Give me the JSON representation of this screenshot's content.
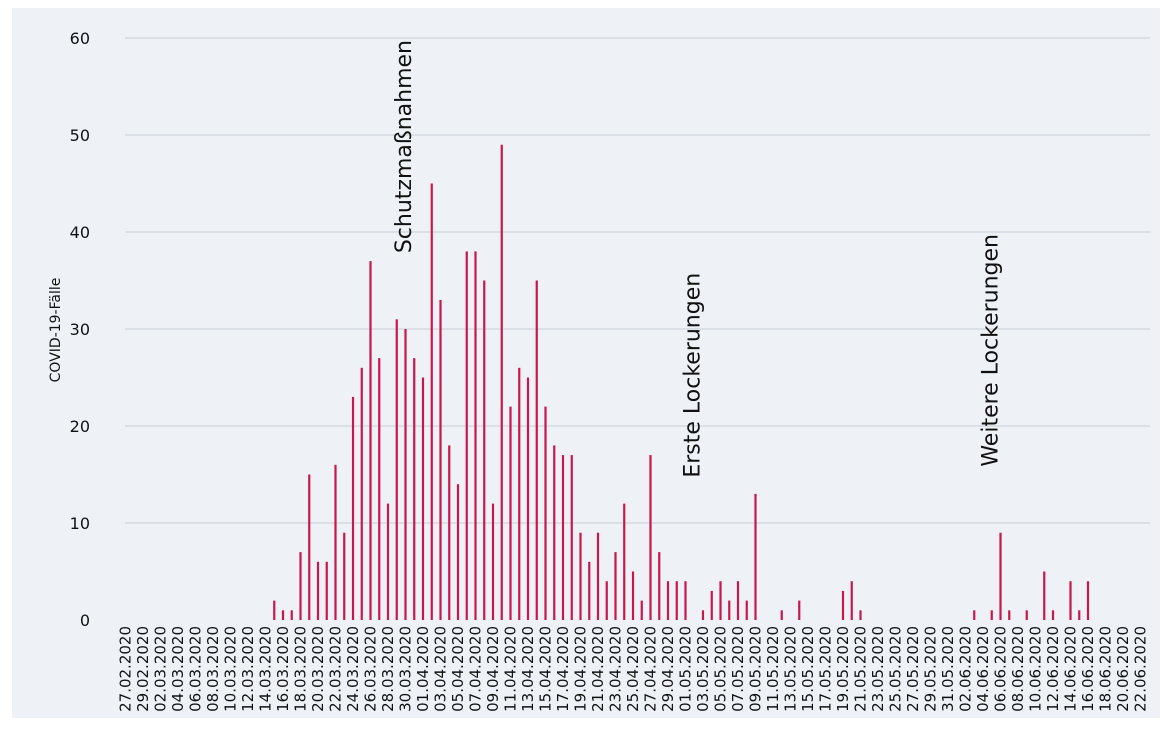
{
  "chart_data": {
    "type": "bar",
    "title": "",
    "xlabel": "",
    "ylabel": "COVID-19-Fälle",
    "ylim": [
      0,
      60
    ],
    "yticks": [
      0,
      10,
      20,
      30,
      40,
      50,
      60
    ],
    "grid": "horizontal",
    "colors": {
      "bar": "#c8174b",
      "grid": "#c7cfd7",
      "background": "#eef2f6"
    },
    "start_date": "27.02.2020",
    "categories": [
      "27.02.2020",
      "28.02.2020",
      "29.02.2020",
      "01.03.2020",
      "02.03.2020",
      "03.03.2020",
      "04.03.2020",
      "05.03.2020",
      "06.03.2020",
      "07.03.2020",
      "08.03.2020",
      "09.03.2020",
      "10.03.2020",
      "11.03.2020",
      "12.03.2020",
      "13.03.2020",
      "14.03.2020",
      "15.03.2020",
      "16.03.2020",
      "17.03.2020",
      "18.03.2020",
      "19.03.2020",
      "20.03.2020",
      "21.03.2020",
      "22.03.2020",
      "23.03.2020",
      "24.03.2020",
      "25.03.2020",
      "26.03.2020",
      "27.03.2020",
      "28.03.2020",
      "29.03.2020",
      "30.03.2020",
      "31.03.2020",
      "01.04.2020",
      "02.04.2020",
      "03.04.2020",
      "04.04.2020",
      "05.04.2020",
      "06.04.2020",
      "07.04.2020",
      "08.04.2020",
      "09.04.2020",
      "10.04.2020",
      "11.04.2020",
      "12.04.2020",
      "13.04.2020",
      "14.04.2020",
      "15.04.2020",
      "16.04.2020",
      "17.04.2020",
      "18.04.2020",
      "19.04.2020",
      "20.04.2020",
      "21.04.2020",
      "22.04.2020",
      "23.04.2020",
      "24.04.2020",
      "25.04.2020",
      "26.04.2020",
      "27.04.2020",
      "28.04.2020",
      "29.04.2020",
      "30.04.2020",
      "01.05.2020",
      "02.05.2020",
      "03.05.2020",
      "04.05.2020",
      "05.05.2020",
      "06.05.2020",
      "07.05.2020",
      "08.05.2020",
      "09.05.2020",
      "10.05.2020",
      "11.05.2020",
      "12.05.2020",
      "13.05.2020",
      "14.05.2020",
      "15.05.2020",
      "16.05.2020",
      "17.05.2020",
      "18.05.2020",
      "19.05.2020",
      "20.05.2020",
      "21.05.2020",
      "22.05.2020",
      "23.05.2020",
      "24.05.2020",
      "25.05.2020",
      "26.05.2020",
      "27.05.2020",
      "28.05.2020",
      "29.05.2020",
      "30.05.2020",
      "31.05.2020",
      "01.06.2020",
      "02.06.2020",
      "03.06.2020",
      "04.06.2020",
      "05.06.2020",
      "06.06.2020",
      "07.06.2020",
      "08.06.2020",
      "09.06.2020",
      "10.06.2020",
      "11.06.2020",
      "12.06.2020",
      "13.06.2020",
      "14.06.2020",
      "15.06.2020",
      "16.06.2020",
      "17.06.2020",
      "18.06.2020",
      "19.06.2020",
      "20.06.2020",
      "21.06.2020",
      "22.06.2020"
    ],
    "tick_labels": [
      "27.02.2020",
      "29.02.2020",
      "02.03.2020",
      "04.03.2020",
      "06.03.2020",
      "08.03.2020",
      "10.03.2020",
      "12.03.2020",
      "14.03.2020",
      "16.03.2020",
      "18.03.2020",
      "20.03.2020",
      "22.03.2020",
      "24.03.2020",
      "26.03.2020",
      "28.03.2020",
      "30.03.2020",
      "01.04.2020",
      "03.04.2020",
      "05.04.2020",
      "07.04.2020",
      "09.04.2020",
      "11.04.2020",
      "13.04.2020",
      "15.04.2020",
      "17.04.2020",
      "19.04.2020",
      "21.04.2020",
      "23.04.2020",
      "25.04.2020",
      "27.04.2020",
      "29.04.2020",
      "01.05.2020",
      "03.05.2020",
      "05.05.2020",
      "07.05.2020",
      "09.05.2020",
      "11.05.2020",
      "13.05.2020",
      "15.05.2020",
      "17.05.2020",
      "19.05.2020",
      "21.05.2020",
      "23.05.2020",
      "25.05.2020",
      "27.05.2020",
      "29.05.2020",
      "31.05.2020",
      "02.06.2020",
      "04.06.2020",
      "06.06.2020",
      "08.06.2020",
      "10.06.2020",
      "12.06.2020",
      "14.06.2020",
      "16.06.2020",
      "18.06.2020",
      "20.06.2020",
      "22.06.2020"
    ],
    "values": [
      0,
      0,
      0,
      0,
      0,
      0,
      0,
      0,
      0,
      0,
      0,
      0,
      0,
      0,
      0,
      0,
      0,
      2,
      1,
      1,
      7,
      15,
      6,
      6,
      16,
      9,
      23,
      26,
      37,
      27,
      12,
      31,
      30,
      27,
      25,
      45,
      33,
      18,
      14,
      38,
      38,
      35,
      12,
      49,
      22,
      26,
      25,
      35,
      22,
      18,
      17,
      17,
      9,
      6,
      9,
      4,
      7,
      12,
      5,
      2,
      17,
      7,
      4,
      4,
      4,
      0,
      1,
      3,
      4,
      2,
      4,
      2,
      13,
      0,
      0,
      1,
      0,
      2,
      0,
      0,
      0,
      0,
      3,
      4,
      1,
      0,
      0,
      0,
      0,
      0,
      0,
      0,
      0,
      0,
      0,
      0,
      0,
      1,
      0,
      1,
      9,
      1,
      0,
      1,
      0,
      5,
      1,
      0,
      4,
      1,
      4,
      0,
      0,
      0,
      0,
      0,
      0
    ],
    "annotations": [
      {
        "text": "Schutzmaßnahmen",
        "date": "01.04.2020",
        "y_top": 60
      },
      {
        "text": "Erste Lockerungen",
        "date": "04.05.2020",
        "y_top": 36
      },
      {
        "text": "Weitere Lockerungen",
        "date": "07.06.2020",
        "y_top": 40
      }
    ]
  }
}
